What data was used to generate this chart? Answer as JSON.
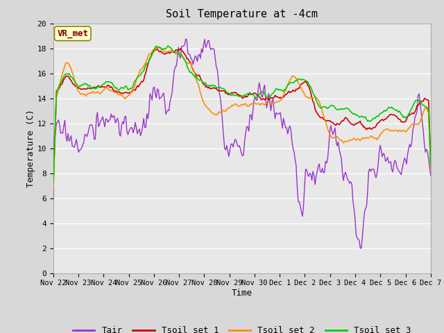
{
  "title": "Soil Temperature at -4cm",
  "xlabel": "Time",
  "ylabel": "Temperature (C)",
  "ylim": [
    0,
    20
  ],
  "background_color": "#d8d8d8",
  "plot_bg_color": "#e8e8e8",
  "grid_color": "#ffffff",
  "annotation_text": "VR_met",
  "annotation_box_color": "#ffffcc",
  "annotation_text_color": "#800000",
  "x_tick_labels": [
    "Nov 22",
    "Nov 23",
    "Nov 24",
    "Nov 25",
    "Nov 26",
    "Nov 27",
    "Nov 28",
    "Nov 29",
    "Nov 30",
    "Dec 1",
    "Dec 2",
    "Dec 3",
    "Dec 4",
    "Dec 5",
    "Dec 6",
    "Dec 7"
  ],
  "series_colors": {
    "Tair": "#9932CC",
    "Tsoil1": "#CC0000",
    "Tsoil2": "#FF8C00",
    "Tsoil3": "#00CC00"
  },
  "legend_labels": [
    "Tair",
    "Tsoil set 1",
    "Tsoil set 2",
    "Tsoil set 3"
  ]
}
